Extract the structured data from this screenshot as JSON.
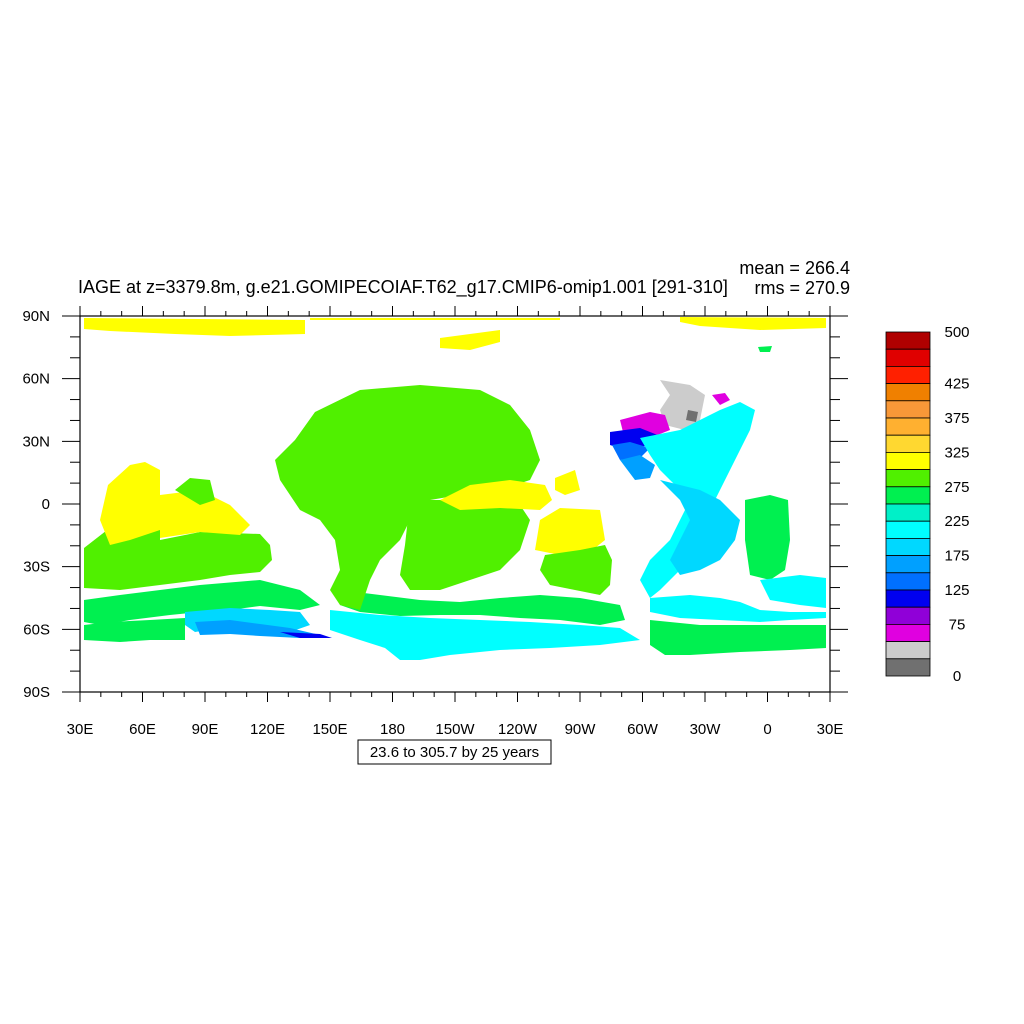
{
  "title": "IAGE at z=3379.8m, g.e21.GOMIPECOIAF.T62_g17.CMIP6-omip1.001 [291-310]",
  "stats": {
    "mean": "mean = 266.4",
    "rms": "rms = 270.9"
  },
  "contour_info": "23.6 to 305.7 by 25 years",
  "map": {
    "lon_ticks": [
      "30E",
      "60E",
      "90E",
      "120E",
      "150E",
      "180",
      "150W",
      "120W",
      "90W",
      "60W",
      "30W",
      "0",
      "30E"
    ],
    "lat_ticks": [
      "90N",
      "60N",
      "30N",
      "0",
      "30S",
      "60S",
      "90S"
    ]
  },
  "colorbar": {
    "labels": [
      "500",
      "425",
      "375",
      "325",
      "275",
      "225",
      "175",
      "125",
      "75",
      "0"
    ],
    "colors": [
      "#b00000",
      "#e00000",
      "#ff2000",
      "#f08000",
      "#f89838",
      "#ffb030",
      "#ffd830",
      "#ffff00",
      "#50f000",
      "#00f050",
      "#00f0c8",
      "#00ffff",
      "#00d8ff",
      "#00a0ff",
      "#0070ff",
      "#0000f0",
      "#9000d8",
      "#e000e0",
      "#cccccc",
      "#707070"
    ]
  },
  "regions": [
    {
      "name": "arctic-band",
      "color": "#ffff00"
    },
    {
      "name": "indian-ocean-north",
      "color": "#50f000"
    },
    {
      "name": "indian-ocean-mid",
      "color": "#ffff00"
    },
    {
      "name": "indian-ocean-south",
      "color": "#00f050"
    },
    {
      "name": "southern-ocean-indian",
      "color": "#00d8ff"
    },
    {
      "name": "pacific-north",
      "color": "#50f000"
    },
    {
      "name": "pacific-east-tropics",
      "color": "#ffff00"
    },
    {
      "name": "pacific-south",
      "color": "#50f000"
    },
    {
      "name": "southern-ocean-pacific",
      "color": "#00ffff"
    },
    {
      "name": "atlantic-north",
      "color": "#00ffff"
    },
    {
      "name": "nordic-seas",
      "color": "#cccccc"
    },
    {
      "name": "labrador-sea",
      "color": "#e000e0"
    },
    {
      "name": "atlantic-south-west",
      "color": "#00ffff"
    },
    {
      "name": "atlantic-south-east",
      "color": "#00f050"
    },
    {
      "name": "southern-ocean-atlantic",
      "color": "#00f050"
    }
  ]
}
